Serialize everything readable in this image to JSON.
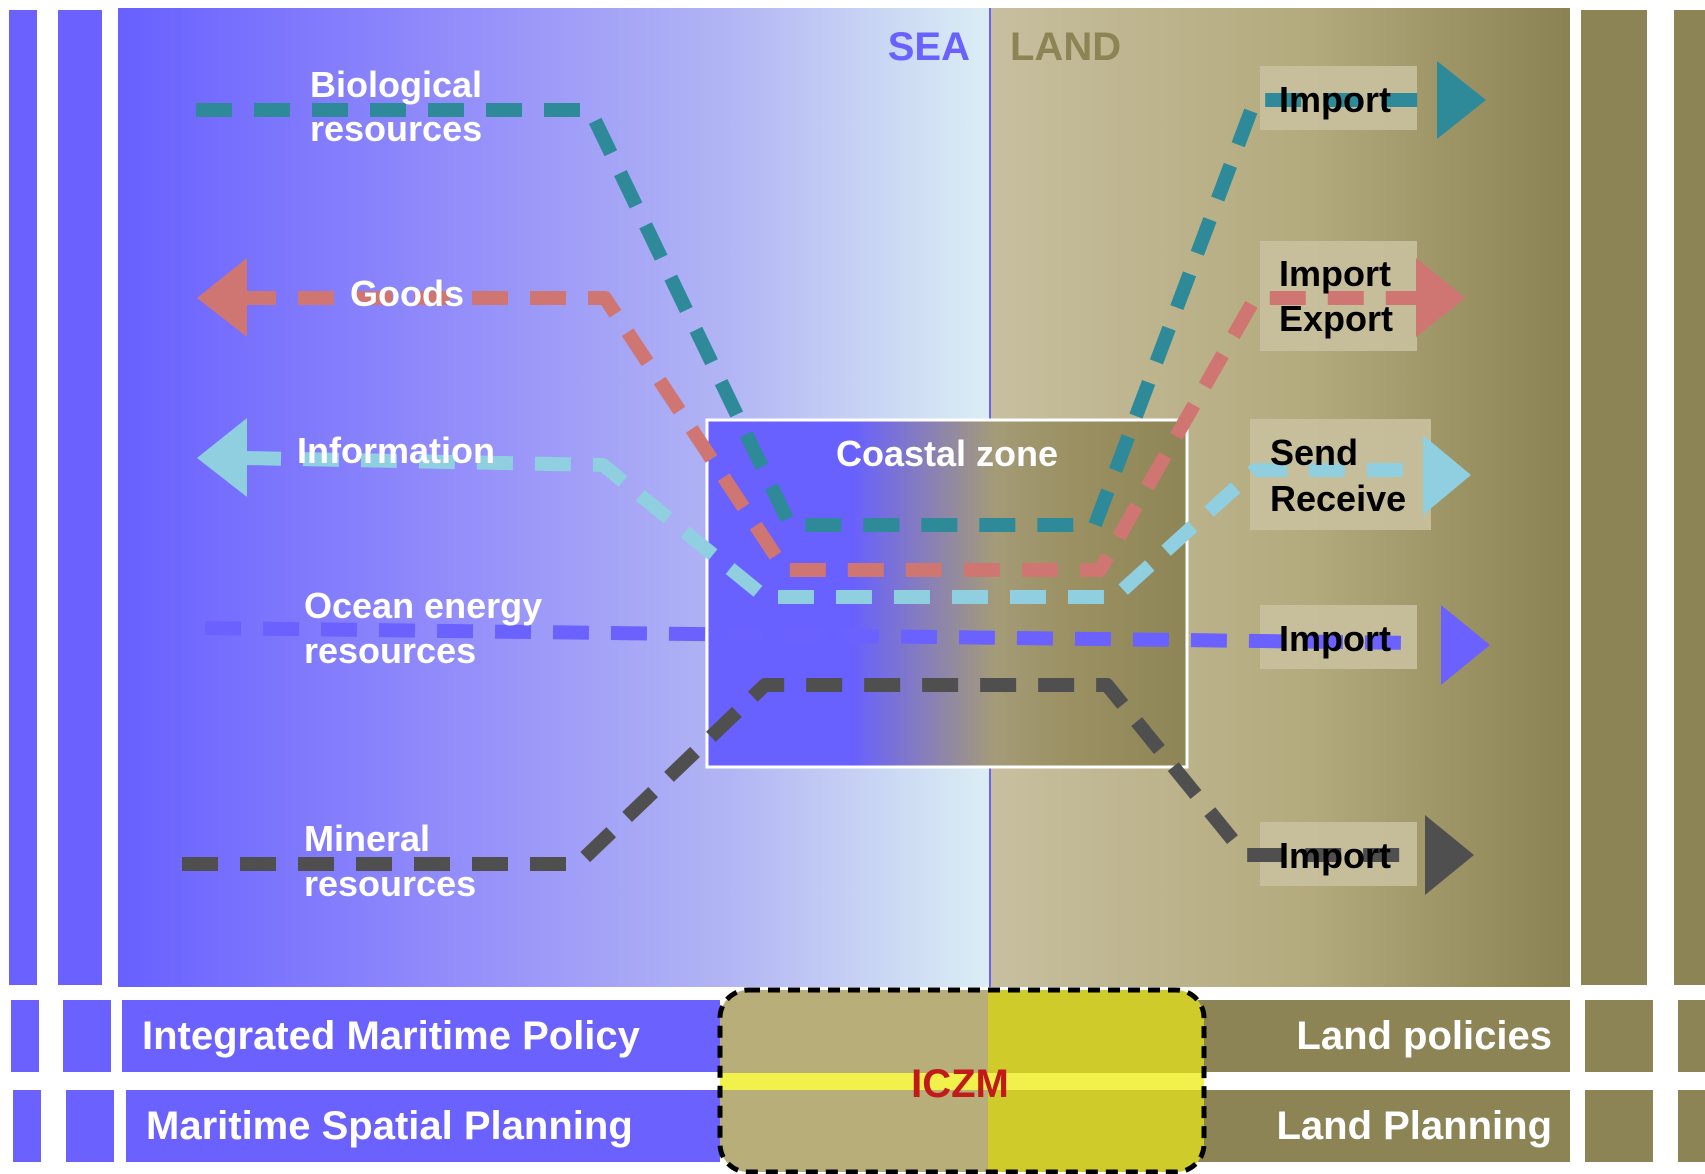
{
  "header": {
    "sea": "SEA",
    "land": "LAND"
  },
  "coastal_zone": {
    "label": "Coastal zone"
  },
  "left_labels": {
    "biological": [
      "Biological",
      "resources"
    ],
    "goods": "Goods",
    "information": "Information",
    "ocean_energy": [
      "Ocean energy",
      "resources"
    ],
    "mineral": [
      "Mineral",
      "resources"
    ]
  },
  "right_labels": {
    "import_1": "Import",
    "import_export": [
      "Import",
      "Export"
    ],
    "send_receive": [
      "Send",
      "Receive"
    ],
    "import_2": "Import",
    "import_3": "Import"
  },
  "policies": {
    "left_top": "Integrated Maritime Policy",
    "left_bottom": "Maritime Spatial Planning",
    "right_top": "Land policies",
    "right_bottom": "Land Planning",
    "center": "ICZM"
  },
  "colors": {
    "sea": "#6b61ff",
    "sea_light": "#d8ecf4",
    "land": "#8d8456",
    "land_light": "#c6be9e",
    "biological": "#2e8a99",
    "goods": "#d07672",
    "information": "#8fcfdf",
    "ocean_energy": "#6b61ff",
    "mineral": "#4f4f4f",
    "iczm_text": "#c01a1a",
    "iczm_fill": "#cfcb2a",
    "iczm_band": "#f2f04a"
  }
}
